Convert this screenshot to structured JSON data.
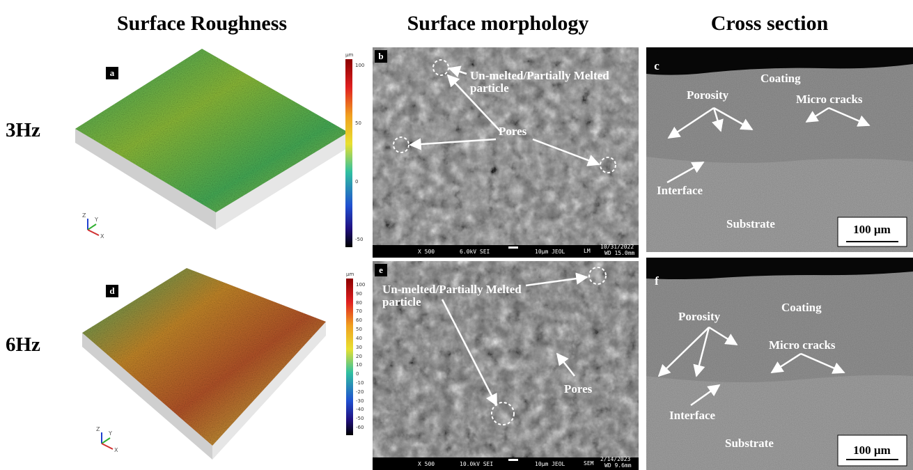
{
  "column_headers": [
    "Surface Roughness",
    "Surface morphology",
    "Cross section"
  ],
  "row_labels": [
    "3Hz",
    "6Hz"
  ],
  "roughness": [
    {
      "label": "a",
      "unit": "μm",
      "scale": [
        100,
        50,
        0,
        -50
      ],
      "axes": [
        "Z",
        "Y",
        "X"
      ]
    },
    {
      "label": "d",
      "unit": "μm",
      "scale": [
        100,
        90,
        80,
        70,
        60,
        50,
        40,
        30,
        20,
        10,
        0,
        -10,
        -20,
        -30,
        -40,
        -50,
        -60
      ],
      "axes": [
        "Z",
        "Y",
        "X"
      ]
    }
  ],
  "morphology": [
    {
      "label": "b",
      "annotations": [
        "Un-melted/Partially Melted particle",
        "Pores"
      ],
      "info": [
        "X 500",
        "6.0kV SEI",
        "10μm JEOL",
        "LM",
        "10/31/2022",
        "WD 15.0mm"
      ]
    },
    {
      "label": "e",
      "annotations": [
        "Un-melted/Partially Melted particle",
        "Pores"
      ],
      "info": [
        "X 500",
        "10.0kV SEI",
        "10μm JEOL",
        "SEM",
        "2/14/2023",
        "WD 9.6mm"
      ]
    }
  ],
  "cross_section": [
    {
      "label": "c",
      "annotations": [
        "Coating",
        "Porosity",
        "Micro cracks",
        "Interface",
        "Substrate"
      ],
      "scale_bar": "100 µm"
    },
    {
      "label": "f",
      "annotations": [
        "Coating",
        "Porosity",
        "Micro cracks",
        "Interface",
        "Substrate"
      ],
      "scale_bar": "100 µm"
    }
  ]
}
